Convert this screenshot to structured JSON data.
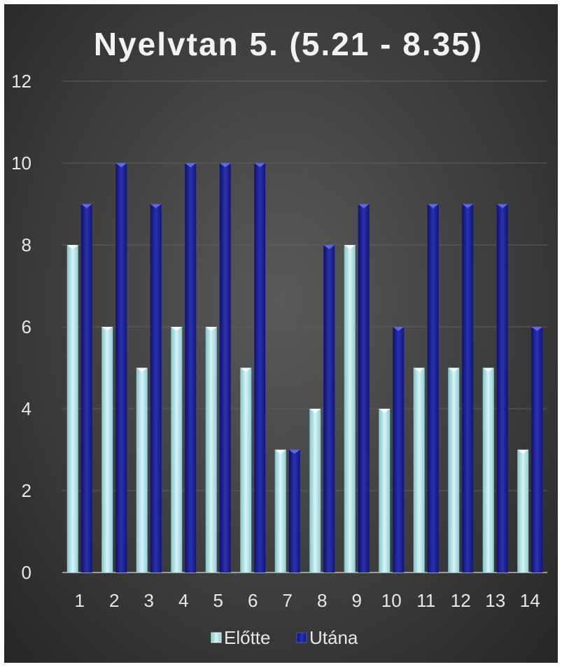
{
  "chart_data": {
    "type": "bar",
    "title": "Nyelvtan 5. (5.21 - 8.35)",
    "categories": [
      "1",
      "2",
      "3",
      "4",
      "5",
      "6",
      "7",
      "8",
      "9",
      "10",
      "11",
      "12",
      "13",
      "14"
    ],
    "series": [
      {
        "name": "Előtte",
        "values": [
          8,
          6,
          5,
          6,
          6,
          5,
          3,
          4,
          8,
          4,
          5,
          5,
          5,
          3
        ],
        "color": "#b6e6ea"
      },
      {
        "name": "Utána",
        "values": [
          9,
          10,
          9,
          10,
          10,
          10,
          3,
          8,
          9,
          6,
          9,
          9,
          9,
          6
        ],
        "color": "#1a1f8c"
      }
    ],
    "yticks": [
      0,
      2,
      4,
      6,
      8,
      10,
      12
    ],
    "ylim": [
      0,
      12
    ],
    "grid": true,
    "legend_position": "bottom",
    "background": "#3e3e3e"
  }
}
